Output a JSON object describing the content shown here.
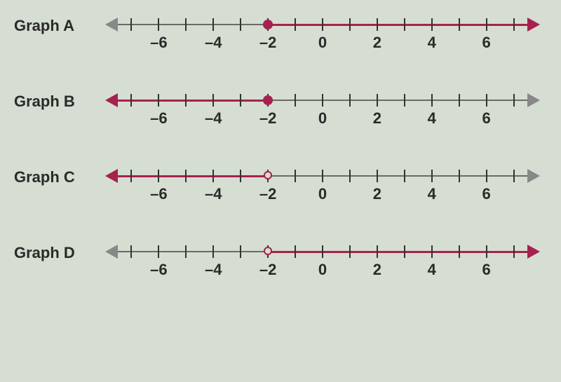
{
  "background_color": "#d6ddd2",
  "axis": {
    "min": -7.5,
    "max": 7.5,
    "ticks": [
      -7,
      -6,
      -5,
      -4,
      -3,
      -2,
      -1,
      0,
      1,
      2,
      3,
      4,
      5,
      6,
      7
    ],
    "label_values": [
      -6,
      -4,
      -2,
      0,
      2,
      4,
      6
    ],
    "labels": [
      "–6",
      "–4",
      "–2",
      "0",
      "2",
      "4",
      "6"
    ],
    "tick_color": "#333333",
    "label_fontsize": 22,
    "label_color": "#2a2a2a",
    "neutral_line_color": "#6a6a6a",
    "highlight_color": "#a5224e",
    "line_width": 2
  },
  "graphs": [
    {
      "label": "Graph A",
      "line_color": "#6a6a6a",
      "highlight": {
        "from": -2,
        "to": "right",
        "color": "#a5224e"
      },
      "endpoint": {
        "value": -2,
        "style": "closed",
        "color": "#a5224e"
      },
      "arrow_left": "#888888",
      "arrow_right": "#a5224e"
    },
    {
      "label": "Graph B",
      "line_color": "#6a6a6a",
      "highlight": {
        "from": -2,
        "to": "left",
        "color": "#a5224e"
      },
      "endpoint": {
        "value": -2,
        "style": "closed",
        "color": "#a5224e"
      },
      "arrow_left": "#a5224e",
      "arrow_right": "#888888"
    },
    {
      "label": "Graph C",
      "line_color": "#6a6a6a",
      "highlight": {
        "from": -2,
        "to": "left",
        "color": "#a5224e"
      },
      "endpoint": {
        "value": -2,
        "style": "open",
        "color": "#a5224e"
      },
      "arrow_left": "#a5224e",
      "arrow_right": "#888888"
    },
    {
      "label": "Graph D",
      "line_color": "#6a6a6a",
      "highlight": {
        "from": -2,
        "to": "right",
        "color": "#a5224e"
      },
      "endpoint": {
        "value": -2,
        "style": "open",
        "color": "#a5224e"
      },
      "arrow_left": "#888888",
      "arrow_right": "#a5224e"
    }
  ]
}
